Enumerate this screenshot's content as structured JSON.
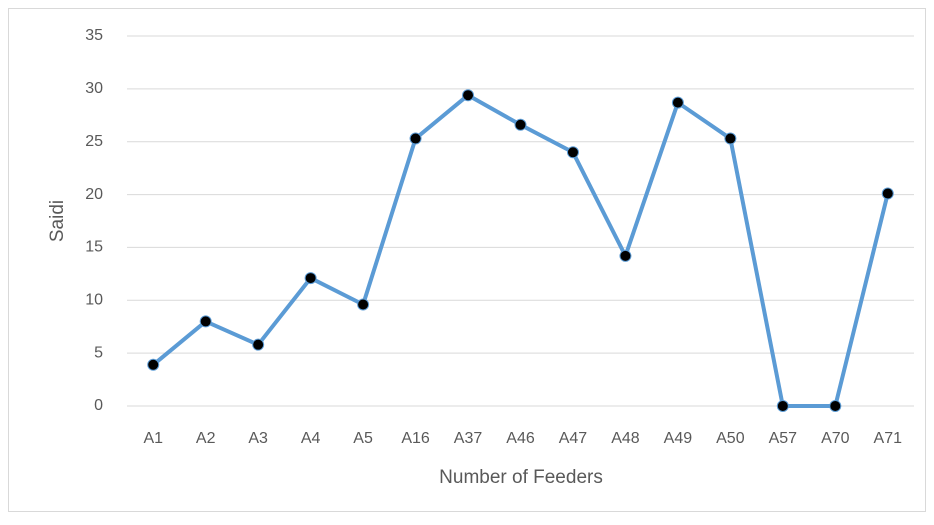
{
  "chart_data": {
    "type": "line",
    "categories": [
      "A1",
      "A2",
      "A3",
      "A4",
      "A5",
      "A16",
      "A37",
      "A46",
      "A47",
      "A48",
      "A49",
      "A50",
      "A57",
      "A70",
      "A71"
    ],
    "series": [
      {
        "name": "Saidi",
        "color": "#5b9bd5",
        "values": [
          3.9,
          8.0,
          5.8,
          12.1,
          9.6,
          25.3,
          29.4,
          26.6,
          24.0,
          14.2,
          28.7,
          25.3,
          0,
          0,
          20.1
        ]
      }
    ],
    "ylim": [
      0,
      35
    ],
    "yticks": [
      0,
      5,
      10,
      15,
      20,
      25,
      30,
      35
    ],
    "grid": true,
    "xlabel": "Number of Feeders",
    "ylabel": "Saidi"
  }
}
